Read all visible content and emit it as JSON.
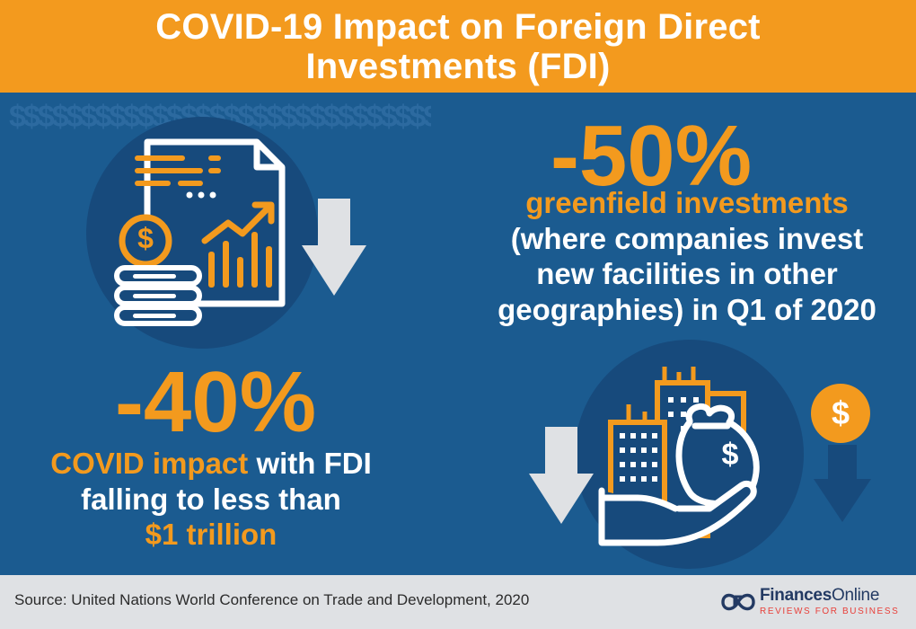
{
  "header": {
    "title_line1": "COVID-19 Impact on Foreign Direct",
    "title_line2": "Investments (FDI)"
  },
  "pattern": {
    "text": "$$$$$$$$$$$$$$$$$$$$$$$$$$$$$$$$$$$$$$$$$$$$$$$$$$$$$$$$$$$$$$$$$$$$$$$$$$$$$$$$$$$$$$$$$$$$$$$$$$$$$$$$$$$$$$$$$$$$$$$$$$$$$$$$$$$$$$$$$$$$$$$$$$$$$$$$$$$$$$$$$$$$$$$$$$$$$$$$$$$$$$$$$"
  },
  "stat_fdi": {
    "value": "-40%",
    "line1_highlight": "COVID impact",
    "line1_rest": " with FDI",
    "line2": "falling to less than",
    "line3": "$1 trillion"
  },
  "stat_greenfield": {
    "value": "-50%",
    "highlight": "greenfield investments",
    "line1": "(where companies invest",
    "line2": "new facilities in other",
    "line3": "geographies) in Q1 of 2020"
  },
  "icons": {
    "coin_symbol": "$",
    "bag_symbol": "$",
    "badge_symbol": "$"
  },
  "footer": {
    "source": "Source: United Nations World Conference on Trade and Development, 2020",
    "brand_bold": "Finances",
    "brand_light": "Online",
    "brand_tagline": "REVIEWS FOR BUSINESS"
  },
  "colors": {
    "orange": "#f39a1e",
    "blue_bg": "#1b5b90",
    "blue_dark": "#174a7c",
    "white": "#ffffff",
    "footer_bg": "#dfe1e4"
  }
}
